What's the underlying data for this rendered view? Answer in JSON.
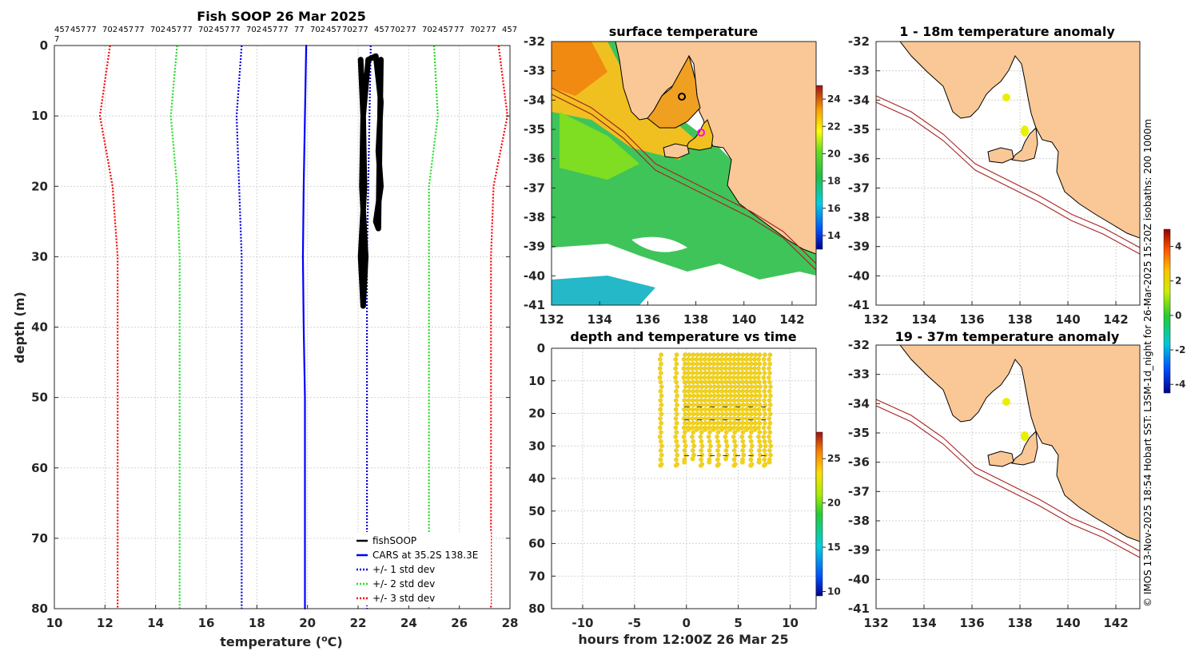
{
  "chart_data": [
    {
      "type": "line",
      "title": "Fish SOOP 26 Mar 2025",
      "xlabel": "temperature (°C)",
      "ylabel": "depth (m)",
      "xlim": [
        10,
        28
      ],
      "ylim": [
        0,
        80
      ],
      "y_reversed": true,
      "xticks": [
        10,
        12,
        14,
        16,
        18,
        20,
        22,
        24,
        26,
        28
      ],
      "yticks": [
        0,
        10,
        20,
        30,
        40,
        50,
        60,
        70,
        80
      ],
      "top_ids": [
        "457",
        "457",
        "77",
        "702",
        "457",
        "77",
        "702",
        "457",
        "77",
        "702",
        "457",
        "77",
        "702",
        "457",
        "77",
        "77",
        "702",
        "457",
        "702",
        "77",
        "457",
        "702",
        "77",
        "702",
        "457",
        "77",
        "702",
        "77",
        "457"
      ],
      "top_ids_wrap": "7",
      "legend": [
        "fishSOOP",
        "CARS at 35.2S 138.3E",
        "+/- 1 std dev",
        "+/- 2 std dev",
        "+/- 3 std dev"
      ],
      "series": [
        {
          "name": "CARS at 35.2S 138.3E",
          "color": "#0000ff",
          "style": "solid",
          "x": [
            19.95,
            19.9,
            19.85,
            19.82,
            19.85,
            19.9,
            19.9,
            19.9,
            19.9
          ],
          "y": [
            0,
            10,
            20,
            30,
            40,
            50,
            60,
            70,
            80
          ]
        },
        {
          "name": "+1 std dev",
          "color": "#0000dd",
          "style": "dotted",
          "x": [
            22.5,
            22.45,
            22.4,
            22.35,
            22.35,
            22.35,
            22.35,
            22.35,
            22.35
          ],
          "y": [
            0,
            10,
            20,
            30,
            40,
            50,
            60,
            70,
            80
          ]
        },
        {
          "name": "-1 std dev",
          "color": "#0000dd",
          "style": "dotted",
          "x": [
            17.4,
            17.2,
            17.3,
            17.4,
            17.4,
            17.4,
            17.4,
            17.4,
            17.4
          ],
          "y": [
            0,
            10,
            20,
            30,
            40,
            50,
            60,
            70,
            80
          ]
        },
        {
          "name": "+2 std dev",
          "color": "#22dd22",
          "style": "dotted",
          "x": [
            25.0,
            25.15,
            24.8,
            24.8,
            24.8,
            24.8,
            24.8,
            24.8,
            24.8
          ],
          "y": [
            0,
            10,
            20,
            30,
            40,
            50,
            60,
            70,
            80
          ]
        },
        {
          "name": "-2 std dev",
          "color": "#22dd22",
          "style": "dotted",
          "x": [
            14.85,
            14.6,
            14.85,
            14.95,
            14.95,
            14.95,
            14.95,
            14.95,
            14.95
          ],
          "y": [
            0,
            10,
            20,
            30,
            40,
            50,
            60,
            70,
            80
          ]
        },
        {
          "name": "+3 std dev",
          "color": "#ff0000",
          "style": "dotted",
          "x": [
            27.55,
            27.9,
            27.35,
            27.25,
            27.25,
            27.25,
            27.25,
            27.25,
            27.25
          ],
          "y": [
            0,
            10,
            20,
            30,
            40,
            50,
            60,
            70,
            80
          ]
        },
        {
          "name": "-3 std dev",
          "color": "#ff0000",
          "style": "dotted",
          "x": [
            12.2,
            11.8,
            12.3,
            12.5,
            12.5,
            12.5,
            12.5,
            12.5,
            12.5
          ],
          "y": [
            0,
            10,
            20,
            30,
            40,
            50,
            60,
            70,
            80
          ]
        },
        {
          "name": "fishSOOP",
          "color": "#000000",
          "style": "solid",
          "x": [
            22.1,
            22.2,
            22.25,
            22.1,
            22.2,
            22.3,
            22.15,
            22.2,
            22.4,
            22.7,
            22.9,
            22.8,
            22.9,
            22.7,
            22.8,
            22.9
          ],
          "y": [
            2,
            10,
            20,
            30,
            37,
            30,
            20,
            10,
            2,
            1.5,
            8,
            15,
            20,
            25,
            26,
            2
          ]
        }
      ]
    },
    {
      "type": "heatmap",
      "title": "surface temperature",
      "xlim": [
        132,
        143
      ],
      "ylim": [
        -41,
        -32
      ],
      "xticks": [
        132,
        134,
        136,
        138,
        140,
        142
      ],
      "yticks": [
        -32,
        -33,
        -34,
        -35,
        -36,
        -37,
        -38,
        -39,
        -40,
        -41
      ],
      "colorbar_ticks": [
        14,
        16,
        18,
        20,
        22,
        24
      ],
      "colorbar_range": [
        13,
        25
      ]
    },
    {
      "type": "scatter",
      "title": "depth and temperature vs time",
      "xlabel": "hours from 12:00Z 26 Mar 25",
      "xlim": [
        -13,
        12.5
      ],
      "ylim": [
        0,
        80
      ],
      "y_reversed": true,
      "xticks": [
        -10,
        -5,
        0,
        5,
        10
      ],
      "yticks": [
        0,
        10,
        20,
        30,
        40,
        50,
        60,
        70,
        80
      ],
      "colorbar_ticks": [
        10,
        15,
        20,
        25
      ],
      "colorbar_range": [
        9.5,
        28
      ],
      "profile_times_h": [
        -2.5,
        -1.0,
        -0.2,
        0.2,
        0.6,
        1.0,
        1.4,
        1.8,
        2.2,
        2.6,
        3.0,
        3.4,
        3.8,
        4.2,
        4.6,
        5.0,
        5.4,
        5.8,
        6.2,
        6.6,
        7.0,
        7.5,
        8.0
      ],
      "profile_max_depth_m": [
        36,
        36,
        35,
        25,
        34,
        25,
        36,
        25,
        35,
        25,
        36,
        25,
        34,
        25,
        36,
        25,
        35,
        25,
        36,
        25,
        35,
        36,
        35
      ]
    },
    {
      "type": "heatmap",
      "title": "1 - 18m temperature anomaly",
      "xlim": [
        132,
        143
      ],
      "ylim": [
        -41,
        -32
      ],
      "xticks": [
        132,
        134,
        136,
        138,
        140,
        142
      ],
      "yticks": [
        -32,
        -33,
        -34,
        -35,
        -36,
        -37,
        -38,
        -39,
        -40,
        -41
      ],
      "points": [
        {
          "lon": 137.4,
          "lat": -33.9
        },
        {
          "lon": 138.25,
          "lat": -35.15
        }
      ]
    },
    {
      "type": "heatmap",
      "title": "19 - 37m temperature anomaly",
      "xlim": [
        132,
        143
      ],
      "ylim": [
        -41,
        -32
      ],
      "xticks": [
        132,
        134,
        136,
        138,
        140,
        142
      ],
      "yticks": [
        -32,
        -33,
        -34,
        -35,
        -36,
        -37,
        -38,
        -39,
        -40,
        -41
      ],
      "points": [
        {
          "lon": 137.4,
          "lat": -33.9
        },
        {
          "lon": 138.25,
          "lat": -35.15
        }
      ],
      "colorbar_ticks": [
        -4,
        -2,
        0,
        2,
        4
      ],
      "colorbar_range": [
        -4.5,
        5
      ]
    }
  ],
  "side_note": "© IMOS 13-Nov-2025 18:54 Hobart SST: L3SM-1d_night for 26-Mar-2025 15:20Z isobaths: 200  1000m"
}
